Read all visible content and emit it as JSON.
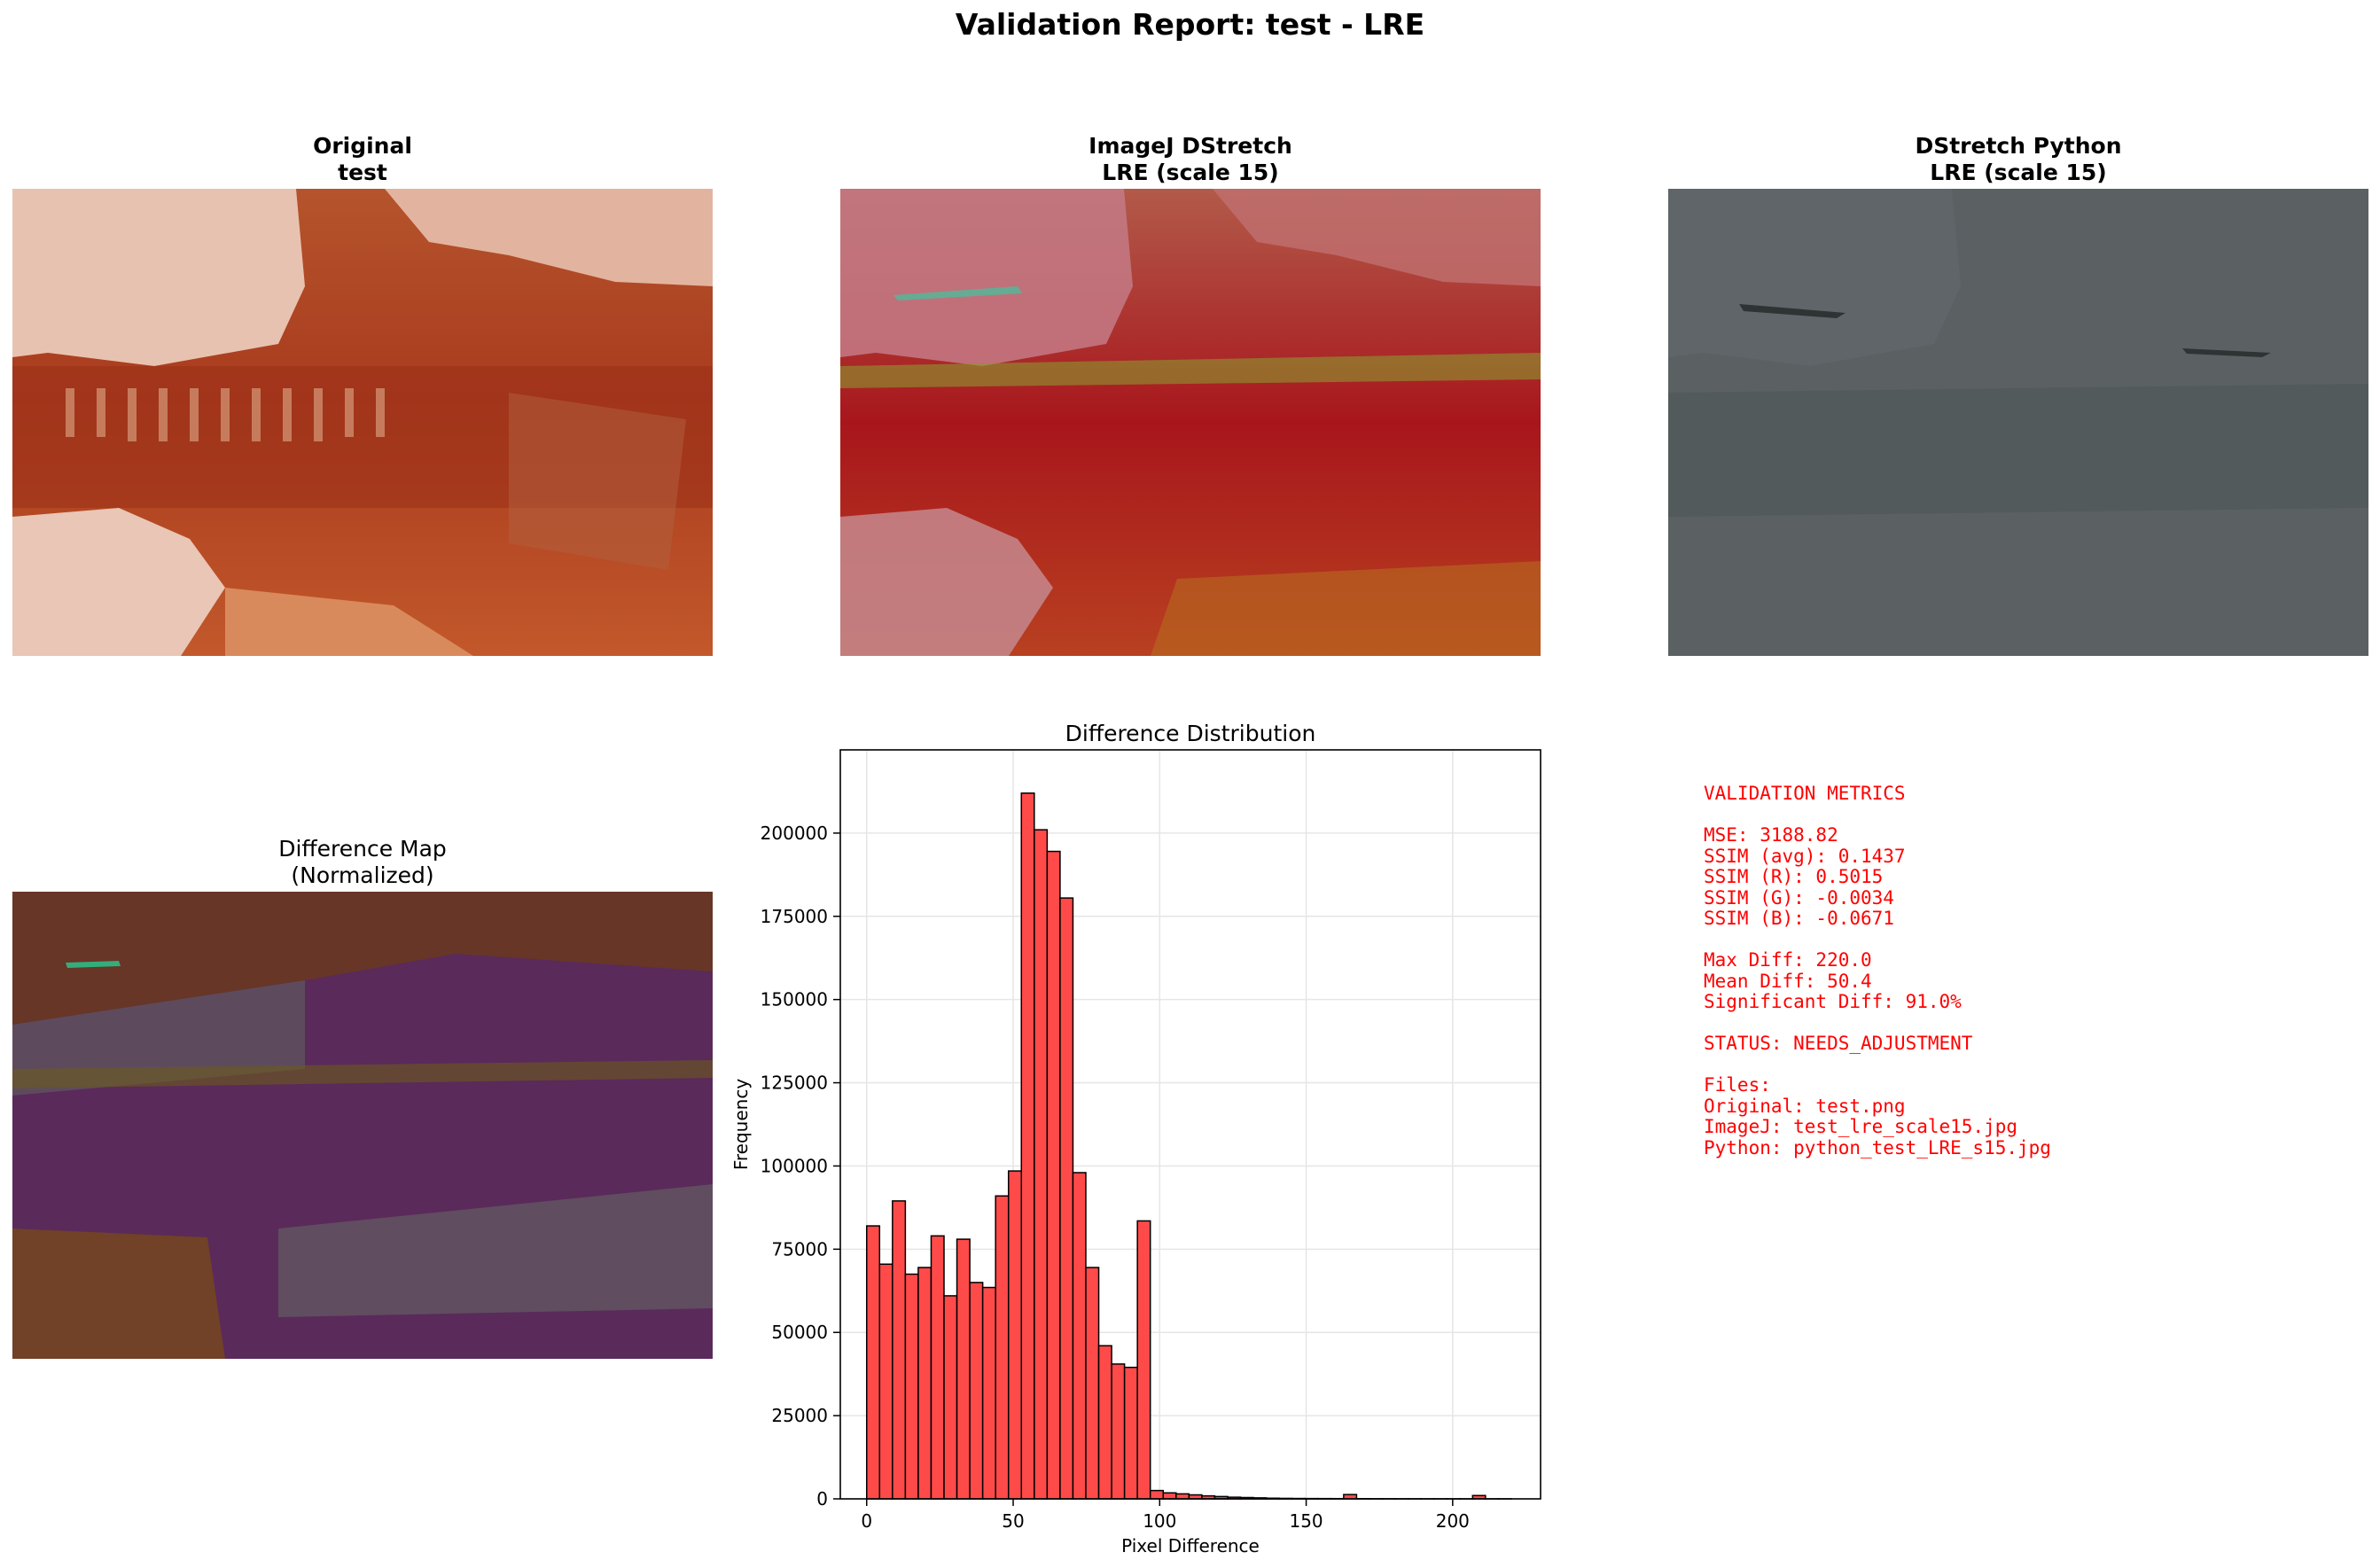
{
  "title": "Validation Report: test - LRE",
  "panels": {
    "original": {
      "title_line1": "Original",
      "title_line2": "test"
    },
    "imagej": {
      "title_line1": "ImageJ DStretch",
      "title_line2": "LRE (scale 15)"
    },
    "python": {
      "title_line1": "DStretch Python",
      "title_line2": "LRE (scale 15)"
    },
    "diffmap": {
      "title_line1": "Difference Map",
      "title_line2": "(Normalized)"
    }
  },
  "chart_data": {
    "type": "bar",
    "title": "Difference Distribution",
    "xlabel": "Pixel Difference",
    "ylabel": "Frequency",
    "xlim": [
      -9,
      230
    ],
    "ylim": [
      0,
      225000
    ],
    "xticks": [
      0,
      50,
      100,
      150,
      200
    ],
    "yticks": [
      0,
      25000,
      50000,
      75000,
      100000,
      125000,
      150000,
      175000,
      200000
    ],
    "grid": true,
    "bar_color": "#ff4a4a",
    "edge_color": "#000000",
    "bin_start": 0,
    "bin_width": 4.4,
    "values": [
      82000,
      70500,
      89500,
      67500,
      69500,
      79000,
      61000,
      78000,
      65000,
      63500,
      91000,
      98500,
      212000,
      201000,
      194500,
      180500,
      98000,
      69500,
      46000,
      40500,
      39500,
      83500,
      2500,
      1800,
      1500,
      1200,
      900,
      700,
      500,
      400,
      300,
      200,
      150,
      120,
      100,
      90,
      80,
      1300,
      60,
      40,
      30,
      20,
      15,
      10,
      10,
      10,
      5,
      1000,
      5,
      5
    ]
  },
  "metrics": {
    "color": "#ff0000",
    "lines": [
      "VALIDATION METRICS",
      "",
      "MSE: 3188.82",
      "SSIM (avg): 0.1437",
      "SSIM (R): 0.5015",
      "SSIM (G): -0.0034",
      "SSIM (B): -0.0671",
      "",
      "Max Diff: 220.0",
      "Mean Diff: 50.4",
      "Significant Diff: 91.0%",
      "",
      "STATUS: NEEDS_ADJUSTMENT",
      "",
      "Files:",
      "Original: test.png",
      "ImageJ: test_lre_scale15.jpg",
      "Python: python_test_LRE_s15.jpg"
    ]
  }
}
